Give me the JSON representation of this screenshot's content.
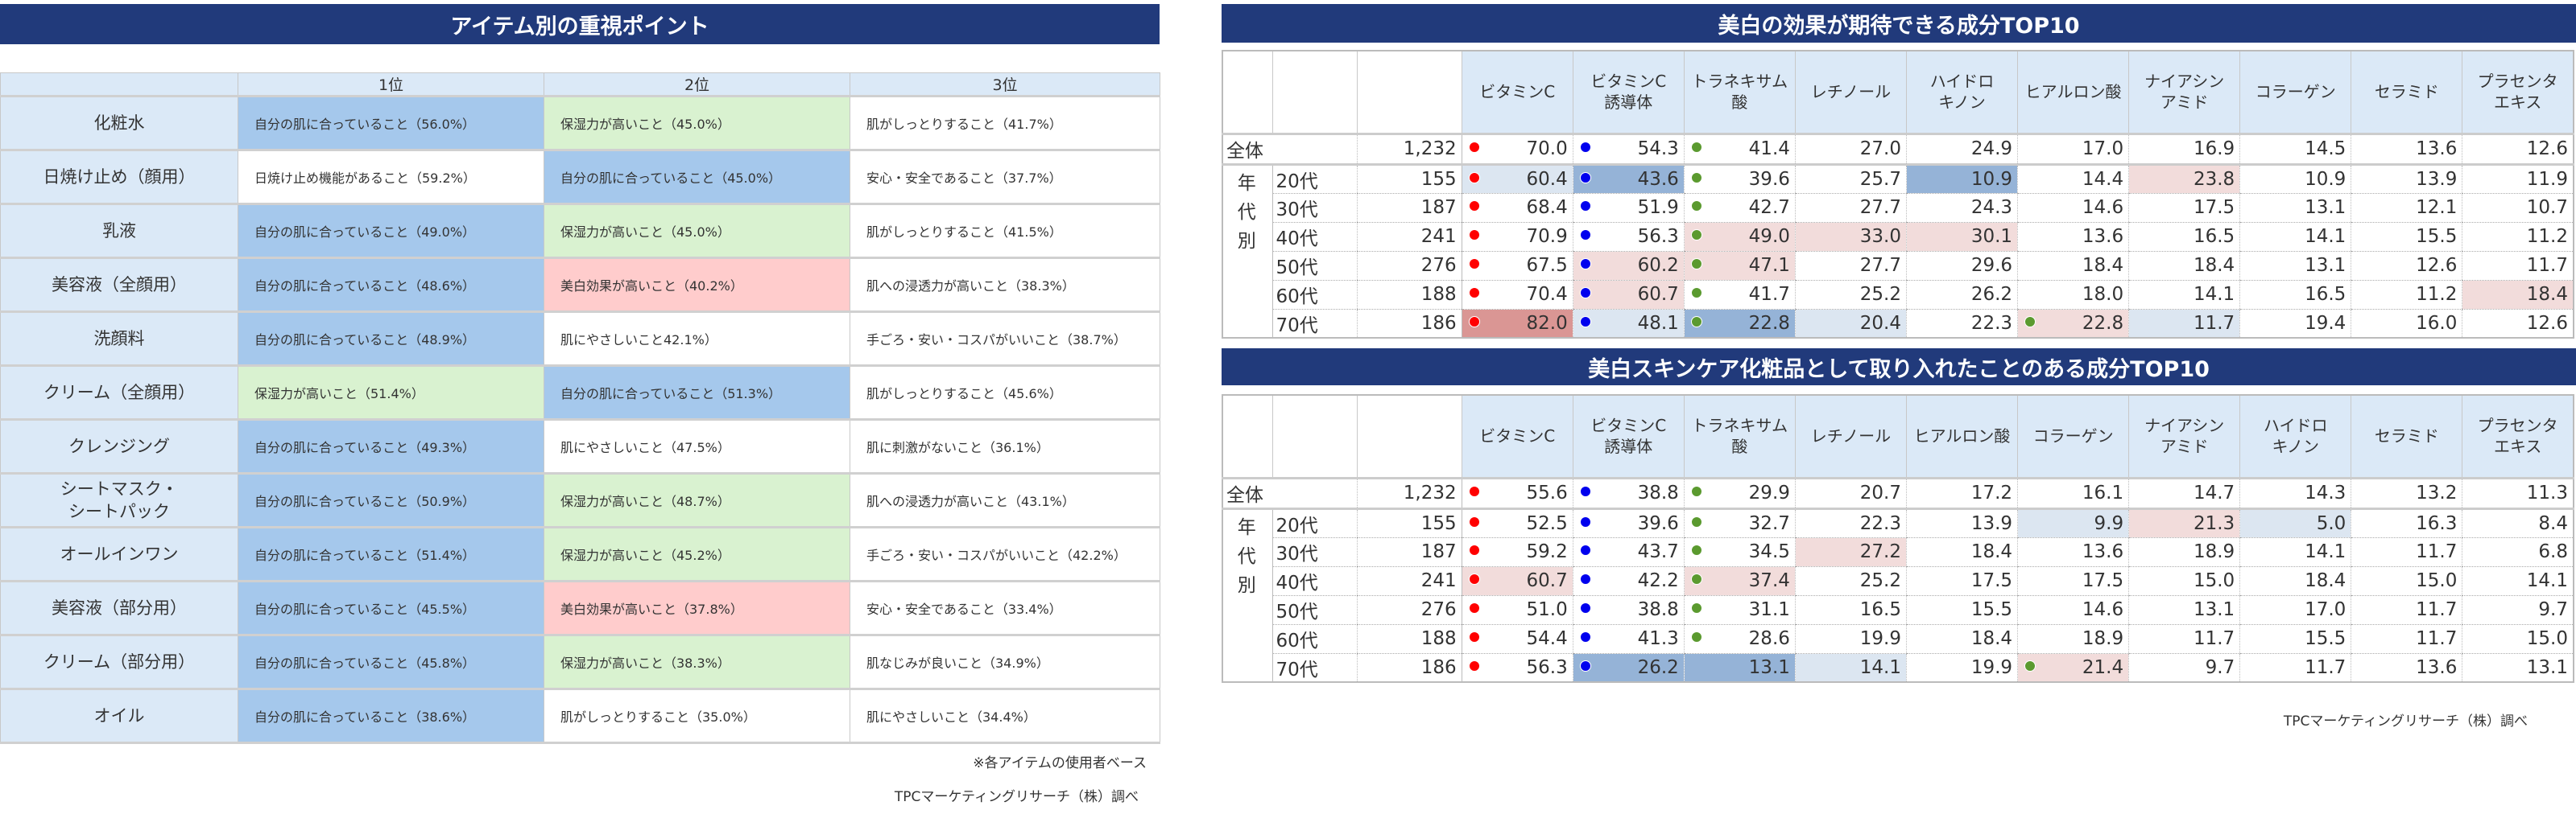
{
  "left": {
    "title": "アイテム別の重視ポイント",
    "headers": [
      "",
      "1位",
      "2位",
      "3位"
    ],
    "colors": {
      "blue": "#a5c8ec",
      "green": "#d9f2d0",
      "pink": "#ffcccc",
      "header": "#dbe9f7"
    },
    "rows": [
      {
        "item": "化粧水",
        "cells": [
          [
            "自分の肌に合っていること（56.0%）",
            "b"
          ],
          [
            "保湿力が高いこと（45.0%）",
            "g"
          ],
          [
            "肌がしっとりすること（41.7%）",
            "w"
          ]
        ]
      },
      {
        "item": "日焼け止め（顔用）",
        "cells": [
          [
            "日焼け止め機能があること（59.2%）",
            "w"
          ],
          [
            "自分の肌に合っていること（45.0%）",
            "b"
          ],
          [
            "安心・安全であること（37.7%）",
            "w"
          ]
        ]
      },
      {
        "item": "乳液",
        "cells": [
          [
            "自分の肌に合っていること（49.0%）",
            "b"
          ],
          [
            "保湿力が高いこと（45.0%）",
            "g"
          ],
          [
            "肌がしっとりすること（41.5%）",
            "w"
          ]
        ]
      },
      {
        "item": "美容液（全顔用）",
        "cells": [
          [
            "自分の肌に合っていること（48.6%）",
            "b"
          ],
          [
            "美白効果が高いこと（40.2%）",
            "p"
          ],
          [
            "肌への浸透力が高いこと（38.3%）",
            "w"
          ]
        ]
      },
      {
        "item": "洗顔料",
        "cells": [
          [
            "自分の肌に合っていること（48.9%）",
            "b"
          ],
          [
            "肌にやさしいこと42.1%）",
            "w"
          ],
          [
            "手ごろ・安い・コスパがいいこと（38.7%）",
            "w"
          ]
        ]
      },
      {
        "item": "クリーム（全顔用）",
        "cells": [
          [
            "保湿力が高いこと（51.4%）",
            "g"
          ],
          [
            "自分の肌に合っていること（51.3%）",
            "b"
          ],
          [
            "肌がしっとりすること（45.6%）",
            "w"
          ]
        ]
      },
      {
        "item": "クレンジング",
        "cells": [
          [
            "自分の肌に合っていること（49.3%）",
            "b"
          ],
          [
            "肌にやさしいこと（47.5%）",
            "w"
          ],
          [
            "肌に刺激がないこと（36.1%）",
            "w"
          ]
        ]
      },
      {
        "item": "シートマスク・\nシートパック",
        "cells": [
          [
            "自分の肌に合っていること（50.9%）",
            "b"
          ],
          [
            "保湿力が高いこと（48.7%）",
            "g"
          ],
          [
            "肌への浸透力が高いこと（43.1%）",
            "w"
          ]
        ]
      },
      {
        "item": "オールインワン",
        "cells": [
          [
            "自分の肌に合っていること（51.4%）",
            "b"
          ],
          [
            "保湿力が高いこと（45.2%）",
            "g"
          ],
          [
            "手ごろ・安い・コスパがいいこと（42.2%）",
            "w"
          ]
        ]
      },
      {
        "item": "美容液（部分用）",
        "cells": [
          [
            "自分の肌に合っていること（45.5%）",
            "b"
          ],
          [
            "美白効果が高いこと（37.8%）",
            "p"
          ],
          [
            "安心・安全であること（33.4%）",
            "w"
          ]
        ]
      },
      {
        "item": "クリーム（部分用）",
        "cells": [
          [
            "自分の肌に合っていること（45.8%）",
            "b"
          ],
          [
            "保湿力が高いこと（38.3%）",
            "g"
          ],
          [
            "肌なじみが良いこと（34.9%）",
            "w"
          ]
        ]
      },
      {
        "item": "オイル",
        "cells": [
          [
            "自分の肌に合っていること（38.6%）",
            "b"
          ],
          [
            "肌がしっとりすること（35.0%）",
            "w"
          ],
          [
            "肌にやさしいこと（34.4%）",
            "w"
          ]
        ]
      }
    ],
    "note": "※各アイテムの使用者ベース",
    "source": "TPCマーケティングリサーチ（株）調べ"
  },
  "group_label": "年\n代\n別",
  "dot_colors": {
    "r": "#ff0000",
    "u": "#0000ee",
    "g": "#5b9a2f"
  },
  "shade_colors": {
    "lb": "#dce6f1",
    "mb": "#95b3d7",
    "lp": "#f2dcdb",
    "dp": "#da9694"
  },
  "table1": {
    "title": "美白の効果が期待できる成分TOP10",
    "headers": [
      "ビタミンC",
      "ビタミンC\n誘導体",
      "トラネキサム\n酸",
      "レチノール",
      "ハイドロ\nキノン",
      "ヒアルロン酸",
      "ナイアシン\nアミド",
      "コラーゲン",
      "セラミド",
      "プラセンタ\nエキス"
    ],
    "rows": [
      {
        "label": "全体",
        "n": "1,232",
        "values": [
          "70.0",
          "54.3",
          "41.4",
          "27.0",
          "24.9",
          "17.0",
          "16.9",
          "14.5",
          "13.6",
          "12.6"
        ],
        "shade": [
          "",
          "",
          "",
          "",
          "",
          "",
          "",
          "",
          "",
          ""
        ],
        "dots": [
          "r",
          "u",
          "g",
          "",
          "",
          "",
          "",
          "",
          "",
          ""
        ]
      },
      {
        "label": "20代",
        "n": "155",
        "values": [
          "60.4",
          "43.6",
          "39.6",
          "25.7",
          "10.9",
          "14.4",
          "23.8",
          "10.9",
          "13.9",
          "11.9"
        ],
        "shade": [
          "lb",
          "mb",
          "",
          "",
          "mb",
          "",
          "lp",
          "",
          "",
          ""
        ],
        "dots": [
          "r",
          "u",
          "g",
          "",
          "",
          "",
          "",
          "",
          "",
          ""
        ]
      },
      {
        "label": "30代",
        "n": "187",
        "values": [
          "68.4",
          "51.9",
          "42.7",
          "27.7",
          "24.3",
          "14.6",
          "17.5",
          "13.1",
          "12.1",
          "10.7"
        ],
        "shade": [
          "",
          "",
          "",
          "",
          "",
          "",
          "",
          "",
          "",
          ""
        ],
        "dots": [
          "r",
          "u",
          "g",
          "",
          "",
          "",
          "",
          "",
          "",
          ""
        ]
      },
      {
        "label": "40代",
        "n": "241",
        "values": [
          "70.9",
          "56.3",
          "49.0",
          "33.0",
          "30.1",
          "13.6",
          "16.5",
          "14.1",
          "15.5",
          "11.2"
        ],
        "shade": [
          "",
          "",
          "lp",
          "lp",
          "lp",
          "",
          "",
          "",
          "",
          ""
        ],
        "dots": [
          "r",
          "u",
          "g",
          "",
          "",
          "",
          "",
          "",
          "",
          ""
        ]
      },
      {
        "label": "50代",
        "n": "276",
        "values": [
          "67.5",
          "60.2",
          "47.1",
          "27.7",
          "29.6",
          "18.4",
          "18.4",
          "13.1",
          "12.6",
          "11.7"
        ],
        "shade": [
          "",
          "lp",
          "lp",
          "",
          "",
          "",
          "",
          "",
          "",
          ""
        ],
        "dots": [
          "r",
          "u",
          "g",
          "",
          "",
          "",
          "",
          "",
          "",
          ""
        ]
      },
      {
        "label": "60代",
        "n": "188",
        "values": [
          "70.4",
          "60.7",
          "41.7",
          "25.2",
          "26.2",
          "18.0",
          "14.1",
          "16.5",
          "11.2",
          "18.4"
        ],
        "shade": [
          "",
          "lp",
          "",
          "",
          "",
          "",
          "",
          "",
          "",
          "lp"
        ],
        "dots": [
          "r",
          "u",
          "g",
          "",
          "",
          "",
          "",
          "",
          "",
          ""
        ]
      },
      {
        "label": "70代",
        "n": "186",
        "values": [
          "82.0",
          "48.1",
          "22.8",
          "20.4",
          "22.3",
          "22.8",
          "11.7",
          "19.4",
          "16.0",
          "12.6"
        ],
        "shade": [
          "dp",
          "lb",
          "mb",
          "lb",
          "",
          "lp",
          "lb",
          "",
          "",
          ""
        ],
        "dots": [
          "r",
          "u",
          "g",
          "",
          "",
          "g",
          "",
          "",
          "",
          ""
        ]
      }
    ]
  },
  "table2": {
    "title": "美白スキンケア化粧品として取り入れたことのある成分TOP10",
    "headers": [
      "ビタミンC",
      "ビタミンC\n誘導体",
      "トラネキサム\n酸",
      "レチノール",
      "ヒアルロン酸",
      "コラーゲン",
      "ナイアシン\nアミド",
      "ハイドロ\nキノン",
      "セラミド",
      "プラセンタ\nエキス"
    ],
    "rows": [
      {
        "label": "全体",
        "n": "1,232",
        "values": [
          "55.6",
          "38.8",
          "29.9",
          "20.7",
          "17.2",
          "16.1",
          "14.7",
          "14.3",
          "13.2",
          "11.3"
        ],
        "shade": [
          "",
          "",
          "",
          "",
          "",
          "",
          "",
          "",
          "",
          ""
        ],
        "dots": [
          "r",
          "u",
          "g",
          "",
          "",
          "",
          "",
          "",
          "",
          ""
        ]
      },
      {
        "label": "20代",
        "n": "155",
        "values": [
          "52.5",
          "39.6",
          "32.7",
          "22.3",
          "13.9",
          "9.9",
          "21.3",
          "5.0",
          "16.3",
          "8.4"
        ],
        "shade": [
          "",
          "",
          "",
          "",
          "",
          "lb",
          "lp",
          "lb",
          "",
          ""
        ],
        "dots": [
          "r",
          "u",
          "g",
          "",
          "",
          "",
          "",
          "",
          "",
          ""
        ]
      },
      {
        "label": "30代",
        "n": "187",
        "values": [
          "59.2",
          "43.7",
          "34.5",
          "27.2",
          "18.4",
          "13.6",
          "18.9",
          "14.1",
          "11.7",
          "6.8"
        ],
        "shade": [
          "",
          "",
          "",
          "lp",
          "",
          "",
          "",
          "",
          "",
          ""
        ],
        "dots": [
          "r",
          "u",
          "g",
          "",
          "",
          "",
          "",
          "",
          "",
          ""
        ]
      },
      {
        "label": "40代",
        "n": "241",
        "values": [
          "60.7",
          "42.2",
          "37.4",
          "25.2",
          "17.5",
          "17.5",
          "15.0",
          "18.4",
          "15.0",
          "14.1"
        ],
        "shade": [
          "lp",
          "",
          "lp",
          "",
          "",
          "",
          "",
          "",
          "",
          ""
        ],
        "dots": [
          "r",
          "u",
          "g",
          "",
          "",
          "",
          "",
          "",
          "",
          ""
        ]
      },
      {
        "label": "50代",
        "n": "276",
        "values": [
          "51.0",
          "38.8",
          "31.1",
          "16.5",
          "15.5",
          "14.6",
          "13.1",
          "17.0",
          "11.7",
          "9.7"
        ],
        "shade": [
          "",
          "",
          "",
          "",
          "",
          "",
          "",
          "",
          "",
          ""
        ],
        "dots": [
          "r",
          "u",
          "g",
          "",
          "",
          "",
          "",
          "",
          "",
          ""
        ]
      },
      {
        "label": "60代",
        "n": "188",
        "values": [
          "54.4",
          "41.3",
          "28.6",
          "19.9",
          "18.4",
          "18.9",
          "11.7",
          "15.5",
          "11.7",
          "15.0"
        ],
        "shade": [
          "",
          "",
          "",
          "",
          "",
          "",
          "",
          "",
          "",
          ""
        ],
        "dots": [
          "r",
          "u",
          "g",
          "",
          "",
          "",
          "",
          "",
          "",
          ""
        ]
      },
      {
        "label": "70代",
        "n": "186",
        "values": [
          "56.3",
          "26.2",
          "13.1",
          "14.1",
          "19.9",
          "21.4",
          "9.7",
          "11.7",
          "13.6",
          "13.1"
        ],
        "shade": [
          "",
          "mb",
          "mb",
          "lb",
          "",
          "lp",
          "",
          "",
          "",
          ""
        ],
        "dots": [
          "r",
          "u",
          "",
          "",
          "",
          "g",
          "",
          "",
          "",
          ""
        ]
      }
    ],
    "source": "TPCマーケティングリサーチ（株）調べ"
  }
}
